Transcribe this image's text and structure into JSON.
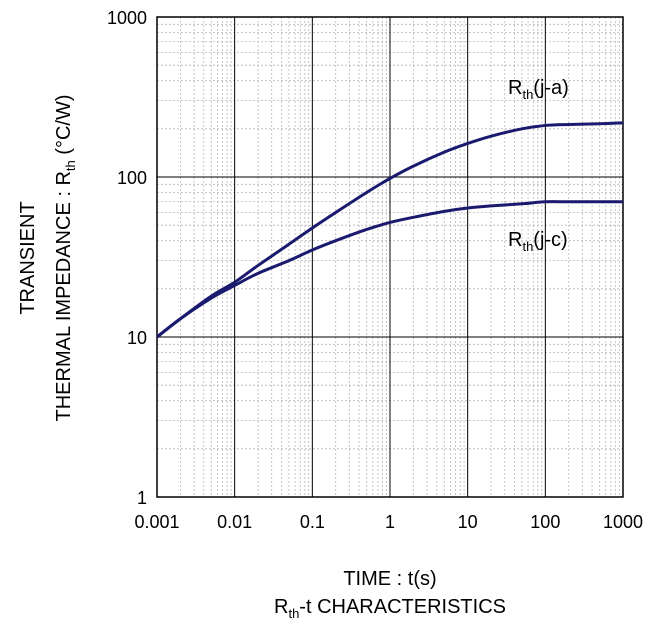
{
  "chart_data": {
    "type": "line",
    "x_scale": "log",
    "y_scale": "log",
    "xlim": [
      0.001,
      1000
    ],
    "ylim": [
      1,
      1000
    ],
    "grid": true,
    "x_ticks": [
      "0.001",
      "0.01",
      "0.1",
      "1",
      "10",
      "100",
      "1000"
    ],
    "y_ticks": [
      "1",
      "10",
      "100",
      "1000"
    ],
    "ylabel_line1": "TRANSIENT",
    "ylabel_line2_main": "THERMAL IMPEDANCE : R",
    "ylabel_line2_sub": "th",
    "ylabel_line2_unit": " (°C/W)",
    "xlabel": "TIME : t(s)",
    "caption_main": "R",
    "caption_sub": "th",
    "caption_rest": "-t CHARACTERISTICS",
    "series": [
      {
        "label_main": "R",
        "label_sub": "th",
        "label_rest": "(j-a)",
        "color": "#1a1a6e",
        "x": [
          0.001,
          0.002,
          0.005,
          0.01,
          0.02,
          0.05,
          0.1,
          0.2,
          0.5,
          1,
          2,
          5,
          10,
          20,
          50,
          100,
          200,
          500,
          1000
        ],
        "y": [
          10,
          13,
          18,
          22,
          28,
          38,
          48,
          60,
          80,
          98,
          117,
          143,
          162,
          180,
          200,
          210,
          213,
          215,
          218
        ]
      },
      {
        "label_main": "R",
        "label_sub": "th",
        "label_rest": "(j-c)",
        "color": "#1a1a6e",
        "x": [
          0.001,
          0.002,
          0.005,
          0.01,
          0.02,
          0.05,
          0.1,
          0.2,
          0.5,
          1,
          2,
          5,
          10,
          20,
          50,
          100,
          200,
          500,
          1000
        ],
        "y": [
          10,
          13,
          17.5,
          21,
          25,
          30,
          35,
          40,
          47,
          52,
          56,
          61,
          64,
          66,
          68,
          70,
          70,
          70,
          70
        ]
      }
    ]
  }
}
